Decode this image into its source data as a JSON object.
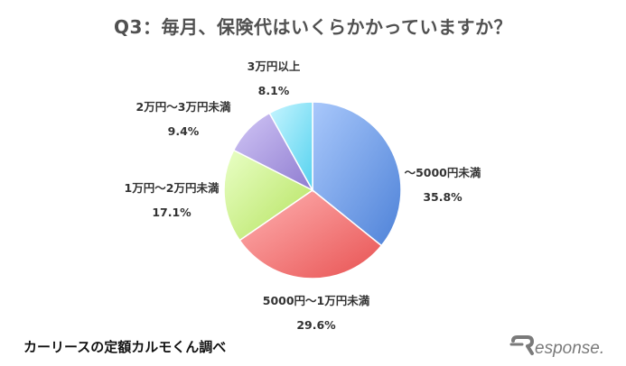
{
  "title": "Q3：毎月、保険代はいくらかかっていますか？",
  "source": "カーリースの定額カルモくん調べ",
  "logo": {
    "text": "Response.",
    "icon": "response-logo"
  },
  "chart_data": {
    "type": "pie",
    "title": "Q3：毎月、保険代はいくらかかっていますか？",
    "slices": [
      {
        "label": "～5000円未満",
        "value": 35.8,
        "display": "35.8%",
        "color": "#6f9fe9",
        "gradient": [
          "#a9c8fb",
          "#4e82d8"
        ]
      },
      {
        "label": "5000円～1万円未満",
        "value": 29.6,
        "display": "29.6%",
        "color": "#f07a7a",
        "gradient": [
          "#ffb3b3",
          "#e85252"
        ]
      },
      {
        "label": "1万円～2万円未満",
        "value": 17.1,
        "display": "17.1%",
        "color": "#c8ef80",
        "gradient": [
          "#e9ffc6",
          "#b4e25c"
        ]
      },
      {
        "label": "2万円～3万円未満",
        "value": 9.4,
        "display": "9.4%",
        "color": "#a898dd",
        "gradient": [
          "#d1c6f6",
          "#8f7cd0"
        ]
      },
      {
        "label": "3万円以上",
        "value": 8.1,
        "display": "8.1%",
        "color": "#86e4f7",
        "gradient": [
          "#c7f5ff",
          "#55d2ef"
        ]
      }
    ],
    "start_angle_deg": 0,
    "direction": "clockwise",
    "legend": "none"
  }
}
